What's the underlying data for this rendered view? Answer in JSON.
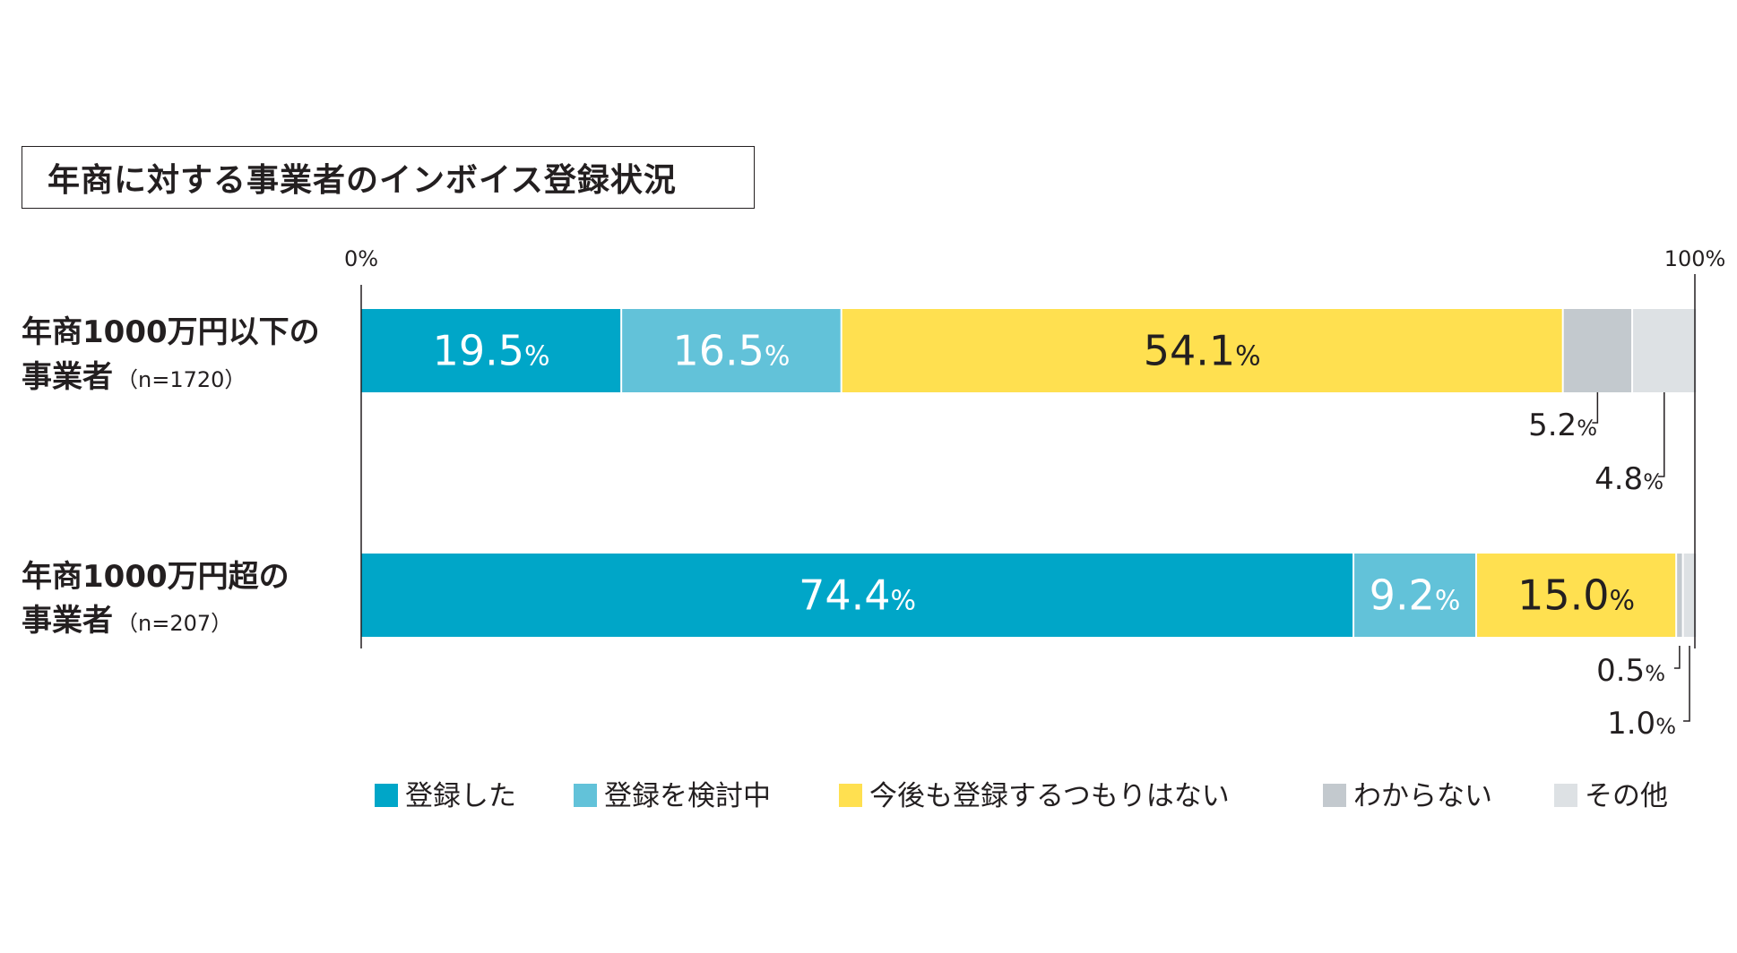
{
  "chart_data": {
    "type": "bar",
    "stacked": true,
    "orientation": "horizontal",
    "title": "年商に対する事業者のインボイス登録状況",
    "axis": {
      "min_label": "0%",
      "max_label": "100%",
      "range": [
        0,
        100
      ]
    },
    "percent_unit": "%",
    "categories": [
      {
        "name": "年商1000万円以下の",
        "name2": "事業者",
        "n_label": "（n=1720）"
      },
      {
        "name": "年商1000万円超の",
        "name2": "事業者",
        "n_label": "（n=207）"
      }
    ],
    "series": [
      {
        "name": "登録した",
        "color": "#00a6c8",
        "label_color": "#ffffff",
        "values": [
          19.5,
          74.4
        ],
        "labels": [
          "19.5",
          "74.4"
        ]
      },
      {
        "name": "登録を検討中",
        "color": "#62c2d9",
        "label_color": "#ffffff",
        "values": [
          16.5,
          9.2
        ],
        "labels": [
          "16.5",
          "9.2"
        ]
      },
      {
        "name": "今後も登録するつもりはない",
        "color": "#ffe050",
        "label_color": "#231f20",
        "values": [
          54.1,
          15.0
        ],
        "labels": [
          "54.1",
          "15.0"
        ]
      },
      {
        "name": "わからない",
        "color": "#c3c9ce",
        "label_color": "#231f20",
        "values": [
          5.2,
          0.5
        ],
        "labels": [
          "5.2",
          "0.5"
        ]
      },
      {
        "name": "その他",
        "color": "#dde1e4",
        "label_color": "#231f20",
        "values": [
          4.8,
          1.0
        ],
        "labels": [
          "4.8",
          "1.0"
        ]
      }
    ],
    "legend_position": "bottom"
  }
}
